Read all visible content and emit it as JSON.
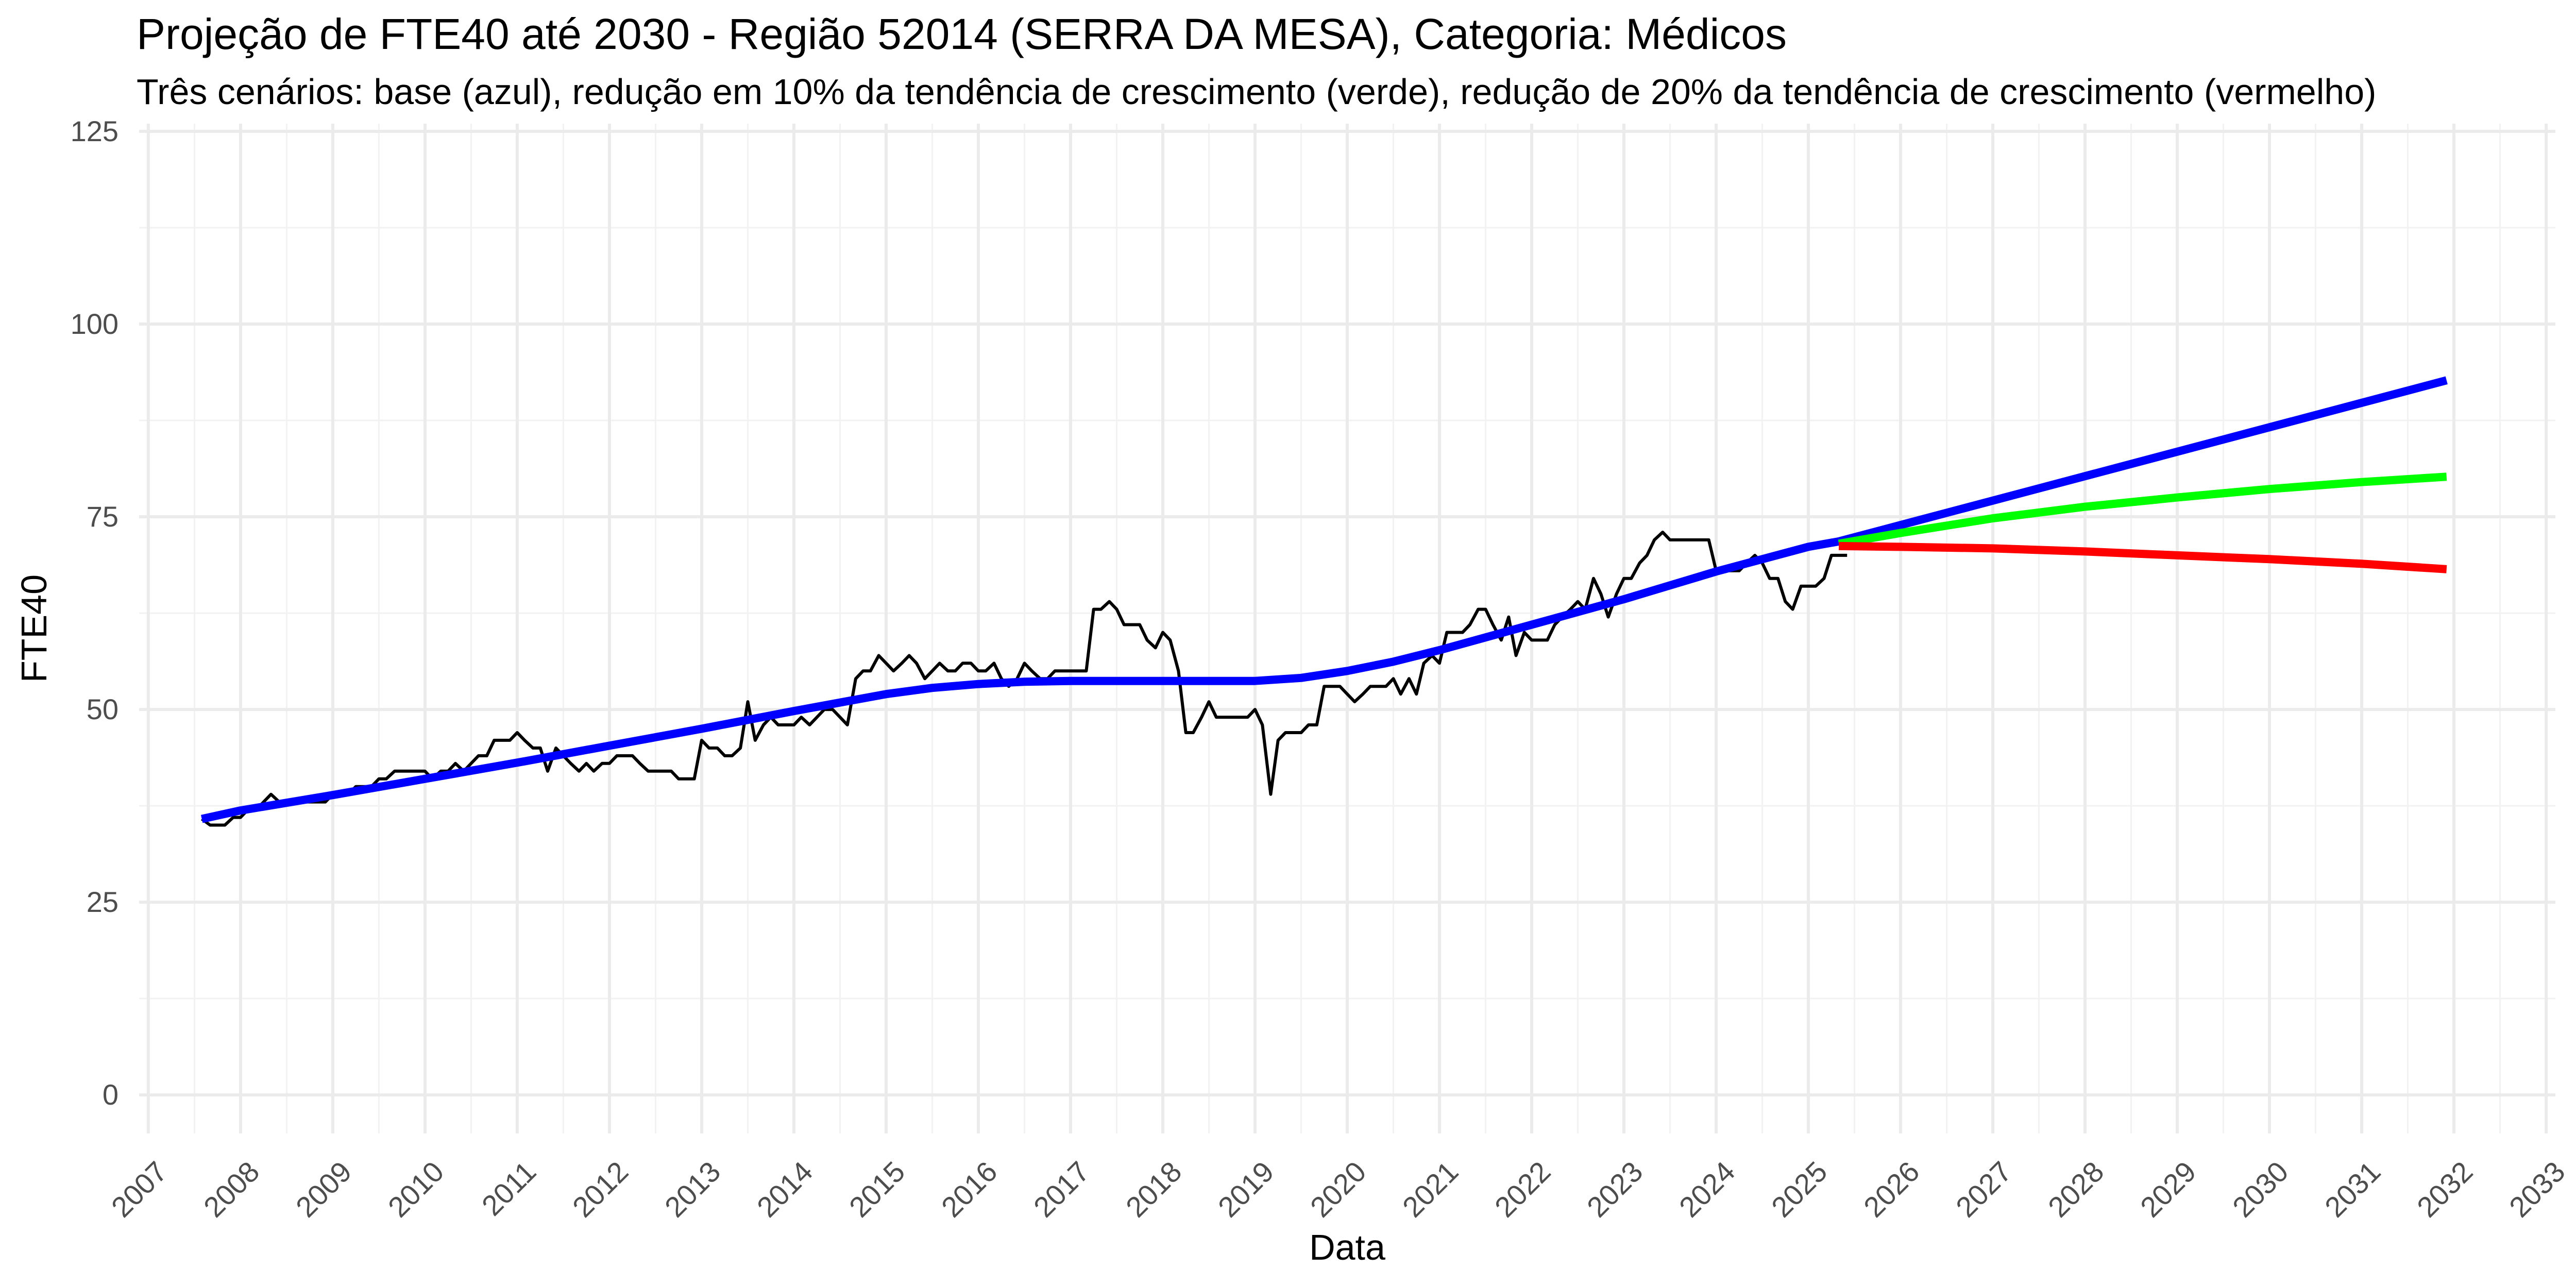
{
  "title": "Projeção de FTE40 até 2030 - Região 52014 (SERRA DA MESA), Categoria: Médicos",
  "subtitle": "Três cenários: base (azul), redução em 10% da tendência de crescimento (verde), redução de 20% da tendência de crescimento (vermelho)",
  "chart_data": {
    "type": "line",
    "xlabel": "Data",
    "ylabel": "FTE40",
    "xlim": [
      2006.9,
      2033.1
    ],
    "ylim": [
      -5,
      126
    ],
    "yticks": [
      0,
      25,
      50,
      75,
      100,
      125
    ],
    "xticks": [
      2007,
      2008,
      2009,
      2010,
      2011,
      2012,
      2013,
      2014,
      2015,
      2016,
      2017,
      2018,
      2019,
      2020,
      2021,
      2022,
      2023,
      2024,
      2025,
      2026,
      2027,
      2028,
      2029,
      2030,
      2031,
      2032,
      2033
    ],
    "grid": true,
    "legend": "none",
    "series": [
      {
        "color": "#000000",
        "points": [
          [
            2007.58,
            35.8
          ],
          [
            2007.67,
            35
          ],
          [
            2007.75,
            35
          ],
          [
            2007.83,
            35
          ],
          [
            2007.92,
            36
          ],
          [
            2008.0,
            36
          ],
          [
            2008.08,
            37
          ],
          [
            2008.17,
            37
          ],
          [
            2008.25,
            38
          ],
          [
            2008.33,
            39
          ],
          [
            2008.42,
            38
          ],
          [
            2008.5,
            38
          ],
          [
            2008.58,
            38
          ],
          [
            2008.67,
            38
          ],
          [
            2008.75,
            38
          ],
          [
            2008.83,
            38
          ],
          [
            2008.92,
            38
          ],
          [
            2009.0,
            39
          ],
          [
            2009.08,
            39
          ],
          [
            2009.17,
            39
          ],
          [
            2009.25,
            40
          ],
          [
            2009.33,
            40
          ],
          [
            2009.42,
            40
          ],
          [
            2009.5,
            41
          ],
          [
            2009.58,
            41
          ],
          [
            2009.67,
            42
          ],
          [
            2009.75,
            42
          ],
          [
            2009.83,
            42
          ],
          [
            2009.92,
            42
          ],
          [
            2010.0,
            42
          ],
          [
            2010.08,
            41
          ],
          [
            2010.17,
            42
          ],
          [
            2010.25,
            42
          ],
          [
            2010.33,
            43
          ],
          [
            2010.42,
            42
          ],
          [
            2010.5,
            43
          ],
          [
            2010.58,
            44
          ],
          [
            2010.67,
            44
          ],
          [
            2010.75,
            46
          ],
          [
            2010.83,
            46
          ],
          [
            2010.92,
            46
          ],
          [
            2011.0,
            47
          ],
          [
            2011.08,
            46
          ],
          [
            2011.17,
            45
          ],
          [
            2011.25,
            45
          ],
          [
            2011.33,
            42
          ],
          [
            2011.42,
            45
          ],
          [
            2011.5,
            44
          ],
          [
            2011.58,
            43
          ],
          [
            2011.67,
            42
          ],
          [
            2011.75,
            43
          ],
          [
            2011.83,
            42
          ],
          [
            2011.92,
            43
          ],
          [
            2012.0,
            43
          ],
          [
            2012.08,
            44
          ],
          [
            2012.17,
            44
          ],
          [
            2012.25,
            44
          ],
          [
            2012.33,
            43
          ],
          [
            2012.42,
            42
          ],
          [
            2012.5,
            42
          ],
          [
            2012.58,
            42
          ],
          [
            2012.67,
            42
          ],
          [
            2012.75,
            41
          ],
          [
            2012.83,
            41
          ],
          [
            2012.92,
            41
          ],
          [
            2013.0,
            46
          ],
          [
            2013.08,
            45
          ],
          [
            2013.17,
            45
          ],
          [
            2013.25,
            44
          ],
          [
            2013.33,
            44
          ],
          [
            2013.42,
            45
          ],
          [
            2013.5,
            51
          ],
          [
            2013.58,
            46
          ],
          [
            2013.67,
            48
          ],
          [
            2013.75,
            49
          ],
          [
            2013.83,
            48
          ],
          [
            2013.92,
            48
          ],
          [
            2014.0,
            48
          ],
          [
            2014.08,
            49
          ],
          [
            2014.17,
            48
          ],
          [
            2014.25,
            49
          ],
          [
            2014.33,
            50
          ],
          [
            2014.42,
            50
          ],
          [
            2014.5,
            49
          ],
          [
            2014.58,
            48
          ],
          [
            2014.67,
            54
          ],
          [
            2014.75,
            55
          ],
          [
            2014.83,
            55
          ],
          [
            2014.92,
            57
          ],
          [
            2015.0,
            56
          ],
          [
            2015.08,
            55
          ],
          [
            2015.17,
            56
          ],
          [
            2015.25,
            57
          ],
          [
            2015.33,
            56
          ],
          [
            2015.42,
            54
          ],
          [
            2015.5,
            55
          ],
          [
            2015.58,
            56
          ],
          [
            2015.67,
            55
          ],
          [
            2015.75,
            55
          ],
          [
            2015.83,
            56
          ],
          [
            2015.92,
            56
          ],
          [
            2016.0,
            55
          ],
          [
            2016.08,
            55
          ],
          [
            2016.17,
            56
          ],
          [
            2016.25,
            54
          ],
          [
            2016.33,
            53
          ],
          [
            2016.42,
            54
          ],
          [
            2016.5,
            56
          ],
          [
            2016.58,
            55
          ],
          [
            2016.67,
            54
          ],
          [
            2016.75,
            54
          ],
          [
            2016.83,
            55
          ],
          [
            2016.92,
            55
          ],
          [
            2017.0,
            55
          ],
          [
            2017.08,
            55
          ],
          [
            2017.17,
            55
          ],
          [
            2017.25,
            63
          ],
          [
            2017.33,
            63
          ],
          [
            2017.42,
            64
          ],
          [
            2017.5,
            63
          ],
          [
            2017.58,
            61
          ],
          [
            2017.67,
            61
          ],
          [
            2017.75,
            61
          ],
          [
            2017.83,
            59
          ],
          [
            2017.92,
            58
          ],
          [
            2018.0,
            60
          ],
          [
            2018.08,
            59
          ],
          [
            2018.17,
            55
          ],
          [
            2018.25,
            47
          ],
          [
            2018.33,
            47
          ],
          [
            2018.42,
            49
          ],
          [
            2018.5,
            51
          ],
          [
            2018.58,
            49
          ],
          [
            2018.67,
            49
          ],
          [
            2018.75,
            49
          ],
          [
            2018.83,
            49
          ],
          [
            2018.92,
            49
          ],
          [
            2019.0,
            50
          ],
          [
            2019.08,
            48
          ],
          [
            2019.17,
            39
          ],
          [
            2019.25,
            46
          ],
          [
            2019.33,
            47
          ],
          [
            2019.42,
            47
          ],
          [
            2019.5,
            47
          ],
          [
            2019.58,
            48
          ],
          [
            2019.67,
            48
          ],
          [
            2019.75,
            53
          ],
          [
            2019.83,
            53
          ],
          [
            2019.92,
            53
          ],
          [
            2020.0,
            52
          ],
          [
            2020.08,
            51
          ],
          [
            2020.17,
            52
          ],
          [
            2020.25,
            53
          ],
          [
            2020.33,
            53
          ],
          [
            2020.42,
            53
          ],
          [
            2020.5,
            54
          ],
          [
            2020.58,
            52
          ],
          [
            2020.67,
            54
          ],
          [
            2020.75,
            52
          ],
          [
            2020.83,
            56
          ],
          [
            2020.92,
            57
          ],
          [
            2021.0,
            56
          ],
          [
            2021.08,
            60
          ],
          [
            2021.17,
            60
          ],
          [
            2021.25,
            60
          ],
          [
            2021.33,
            61
          ],
          [
            2021.42,
            63
          ],
          [
            2021.5,
            63
          ],
          [
            2021.58,
            61
          ],
          [
            2021.67,
            59
          ],
          [
            2021.75,
            62
          ],
          [
            2021.83,
            57
          ],
          [
            2021.92,
            60
          ],
          [
            2022.0,
            59
          ],
          [
            2022.08,
            59
          ],
          [
            2022.17,
            59
          ],
          [
            2022.25,
            61
          ],
          [
            2022.33,
            62
          ],
          [
            2022.42,
            63
          ],
          [
            2022.5,
            64
          ],
          [
            2022.58,
            63
          ],
          [
            2022.67,
            67
          ],
          [
            2022.75,
            65
          ],
          [
            2022.83,
            62
          ],
          [
            2022.92,
            65
          ],
          [
            2023.0,
            67
          ],
          [
            2023.08,
            67
          ],
          [
            2023.17,
            69
          ],
          [
            2023.25,
            70
          ],
          [
            2023.33,
            72
          ],
          [
            2023.42,
            73
          ],
          [
            2023.5,
            72
          ],
          [
            2023.58,
            72
          ],
          [
            2023.67,
            72
          ],
          [
            2023.75,
            72
          ],
          [
            2023.83,
            72
          ],
          [
            2023.92,
            72
          ],
          [
            2024.0,
            68
          ],
          [
            2024.08,
            68
          ],
          [
            2024.17,
            68
          ],
          [
            2024.25,
            68
          ],
          [
            2024.33,
            69
          ],
          [
            2024.42,
            70
          ],
          [
            2024.5,
            69
          ],
          [
            2024.58,
            67
          ],
          [
            2024.67,
            67
          ],
          [
            2024.75,
            64
          ],
          [
            2024.83,
            63
          ],
          [
            2024.92,
            66
          ],
          [
            2025.0,
            66
          ],
          [
            2025.08,
            66
          ],
          [
            2025.17,
            67
          ],
          [
            2025.25,
            70
          ],
          [
            2025.33,
            70
          ],
          [
            2025.42,
            70
          ]
        ]
      },
      {
        "color": "#0000ff",
        "points": [
          [
            2007.58,
            35.8
          ],
          [
            2008.0,
            36.9
          ],
          [
            2009.0,
            38.9
          ],
          [
            2010.0,
            41.0
          ],
          [
            2011.0,
            43.1
          ],
          [
            2012.0,
            45.3
          ],
          [
            2013.0,
            47.5
          ],
          [
            2014.0,
            49.8
          ],
          [
            2014.5,
            50.9
          ],
          [
            2015.0,
            52.0
          ],
          [
            2015.5,
            52.8
          ],
          [
            2016.0,
            53.3
          ],
          [
            2016.5,
            53.6
          ],
          [
            2017.0,
            53.7
          ],
          [
            2018.0,
            53.7
          ],
          [
            2019.0,
            53.7
          ],
          [
            2019.5,
            54.1
          ],
          [
            2020.0,
            55.0
          ],
          [
            2020.5,
            56.2
          ],
          [
            2021.0,
            57.7
          ],
          [
            2022.0,
            61.0
          ],
          [
            2023.0,
            64.3
          ],
          [
            2024.0,
            67.9
          ],
          [
            2025.0,
            71.1
          ],
          [
            2025.33,
            71.8
          ]
        ]
      },
      {
        "color": "#0000ff",
        "points": [
          [
            2025.33,
            71.8
          ],
          [
            2031.92,
            92.7
          ]
        ]
      },
      {
        "color": "#00ff00",
        "points": [
          [
            2025.33,
            71.5
          ],
          [
            2026.0,
            72.9
          ],
          [
            2027.0,
            74.8
          ],
          [
            2028.0,
            76.3
          ],
          [
            2029.0,
            77.5
          ],
          [
            2030.0,
            78.6
          ],
          [
            2031.0,
            79.5
          ],
          [
            2031.92,
            80.2
          ]
        ]
      },
      {
        "color": "#ff0000",
        "points": [
          [
            2025.33,
            71.2
          ],
          [
            2026.0,
            71.1
          ],
          [
            2027.0,
            70.9
          ],
          [
            2028.0,
            70.5
          ],
          [
            2029.0,
            70.0
          ],
          [
            2030.0,
            69.5
          ],
          [
            2031.0,
            68.9
          ],
          [
            2031.92,
            68.2
          ]
        ]
      }
    ]
  }
}
